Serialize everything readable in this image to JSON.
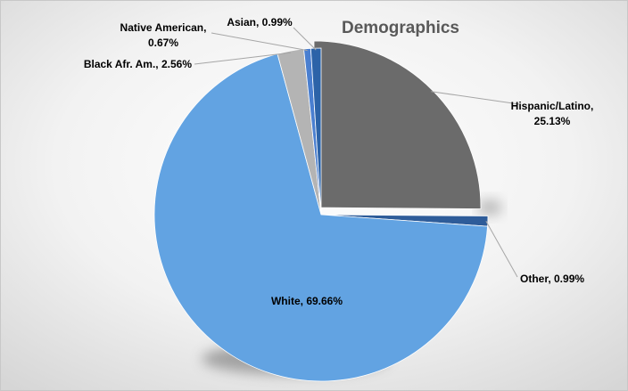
{
  "chart_data": {
    "type": "pie",
    "title": "Demographics",
    "slices": [
      {
        "name": "Hispanic/Latino",
        "value": 25.13,
        "label": "Hispanic/Latino,",
        "label2": "25.13%",
        "color": "#6b6b6b"
      },
      {
        "name": "Other",
        "value": 0.99,
        "label": "Other, 0.99%",
        "color": "#2e5c99"
      },
      {
        "name": "White",
        "value": 69.66,
        "label": "White, 69.66%",
        "color": "#62a3e2"
      },
      {
        "name": "Black Afr. Am.",
        "value": 2.56,
        "label": "Black Afr. Am., 2.56%",
        "color": "#b4b4b4"
      },
      {
        "name": "Native American",
        "value": 0.67,
        "label": "Native American,",
        "label2": "0.67%",
        "color": "#4a7fd0"
      },
      {
        "name": "Asian",
        "value": 0.99,
        "label": "Asian, 0.99%",
        "color": "#2c63a8"
      }
    ],
    "start_angle_deg": 0,
    "direction": "clockwise",
    "legend": "none",
    "data_labels": "outside-with-leader-lines"
  }
}
